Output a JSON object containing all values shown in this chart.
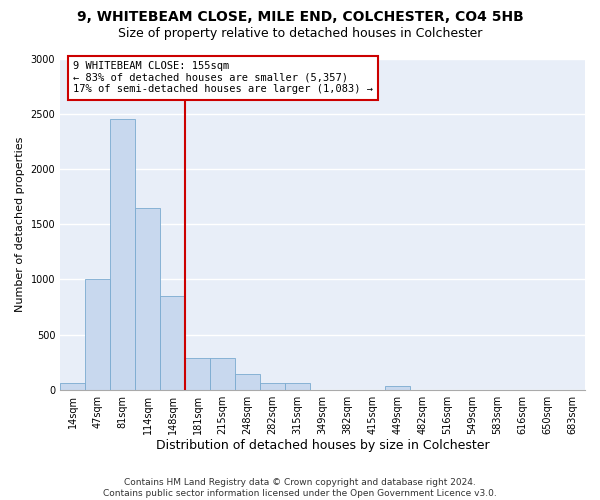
{
  "title1": "9, WHITEBEAM CLOSE, MILE END, COLCHESTER, CO4 5HB",
  "title2": "Size of property relative to detached houses in Colchester",
  "xlabel": "Distribution of detached houses by size in Colchester",
  "ylabel": "Number of detached properties",
  "footnote": "Contains HM Land Registry data © Crown copyright and database right 2024.\nContains public sector information licensed under the Open Government Licence v3.0.",
  "bin_labels": [
    "14sqm",
    "47sqm",
    "81sqm",
    "114sqm",
    "148sqm",
    "181sqm",
    "215sqm",
    "248sqm",
    "282sqm",
    "315sqm",
    "349sqm",
    "382sqm",
    "415sqm",
    "449sqm",
    "482sqm",
    "516sqm",
    "549sqm",
    "583sqm",
    "616sqm",
    "650sqm",
    "683sqm"
  ],
  "bar_values": [
    60,
    1000,
    2460,
    1650,
    850,
    290,
    290,
    140,
    60,
    60,
    0,
    0,
    0,
    30,
    0,
    0,
    0,
    0,
    0,
    0,
    0
  ],
  "bar_color": "#c8d8ee",
  "bar_edge_color": "#7aaad0",
  "vline_x": 4.5,
  "vline_color": "#cc0000",
  "annotation_text": "9 WHITEBEAM CLOSE: 155sqm\n← 83% of detached houses are smaller (5,357)\n17% of semi-detached houses are larger (1,083) →",
  "annotation_box_color": "white",
  "annotation_box_edge_color": "#cc0000",
  "ylim": [
    0,
    3000
  ],
  "yticks": [
    0,
    500,
    1000,
    1500,
    2000,
    2500,
    3000
  ],
  "bg_color": "#e8eef8",
  "grid_color": "white",
  "title1_fontsize": 10,
  "title2_fontsize": 9,
  "ylabel_fontsize": 8,
  "xlabel_fontsize": 9,
  "tick_fontsize": 7,
  "annot_fontsize": 7.5,
  "footnote_fontsize": 6.5
}
